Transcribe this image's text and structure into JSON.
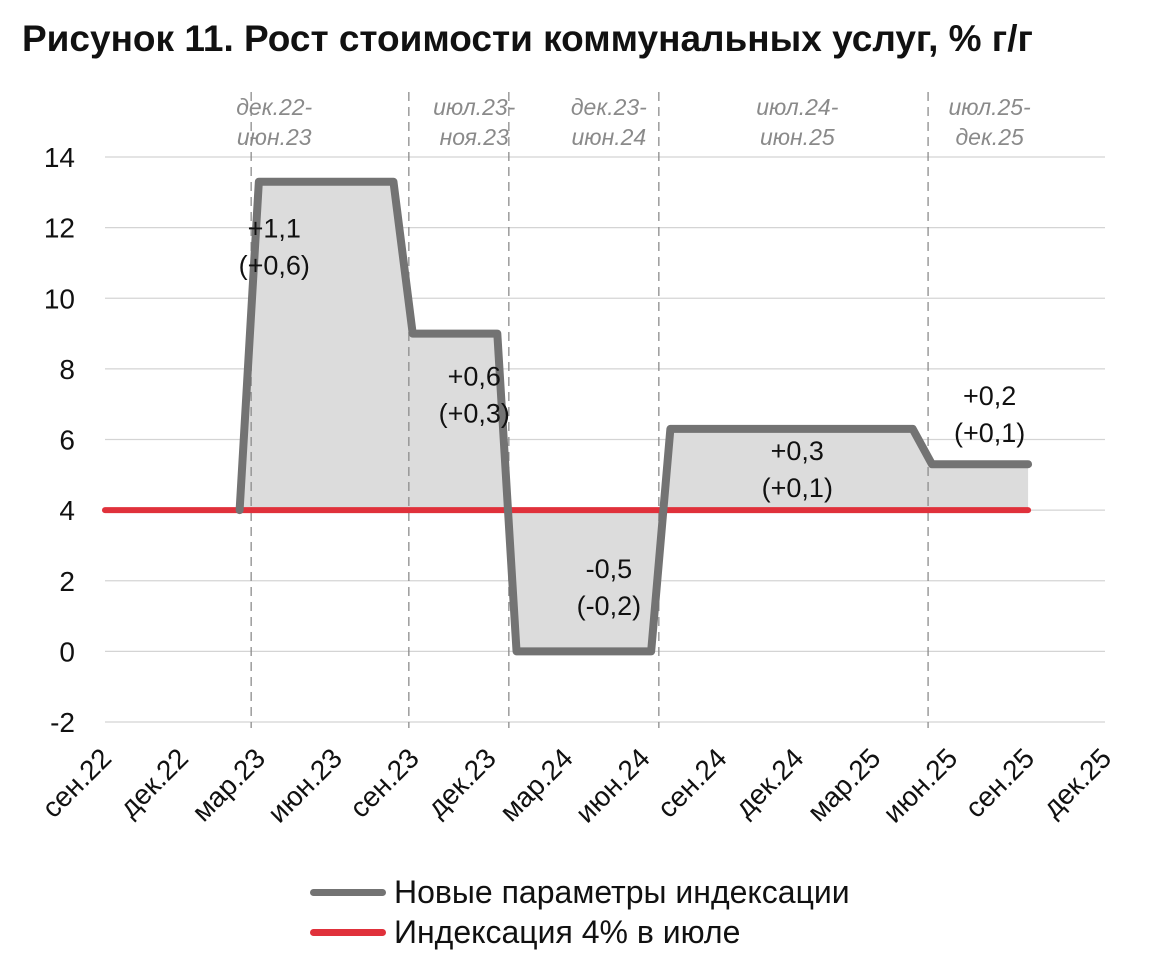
{
  "title": "Рисунок 11. Рост стоимости коммунальных услуг, % г/г",
  "chart_data": {
    "type": "area",
    "ylim": [
      -2,
      14
    ],
    "yticks": [
      -2,
      0,
      2,
      4,
      6,
      8,
      10,
      12,
      14
    ],
    "x_tick_labels": [
      "сен.22",
      "дек.22",
      "мар.23",
      "июн.23",
      "сен.23",
      "дек.23",
      "мар.24",
      "июн.24",
      "сен.24",
      "дек.24",
      "мар.25",
      "июн.25",
      "сен.25",
      "дек.25"
    ],
    "grid": true,
    "legend_position": "bottom",
    "series": [
      {
        "name": "Новые параметры индексации",
        "color": "#737373",
        "points": [
          {
            "x": 1.75,
            "y": 4.0
          },
          {
            "x": 2.0,
            "y": 13.3
          },
          {
            "x": 3.75,
            "y": 13.3
          },
          {
            "x": 4.0,
            "y": 9.0
          },
          {
            "x": 5.1,
            "y": 9.0
          },
          {
            "x": 5.35,
            "y": 0.0
          },
          {
            "x": 7.1,
            "y": 0.0
          },
          {
            "x": 7.35,
            "y": 6.3
          },
          {
            "x": 10.5,
            "y": 6.3
          },
          {
            "x": 10.75,
            "y": 5.3
          },
          {
            "x": 12.0,
            "y": 5.3
          }
        ]
      },
      {
        "name": "Индексация 4% в июле",
        "color": "#e0313b",
        "points": [
          {
            "x": 0.0,
            "y": 4.0
          },
          {
            "x": 12.0,
            "y": 4.0
          }
        ]
      }
    ],
    "area_fill_color": "#dcdcdc",
    "periods": [
      {
        "label": [
          "дек.22-",
          "июн.23"
        ],
        "x": 2.2
      },
      {
        "label": [
          "июл.23-",
          "ноя.23"
        ],
        "x": 4.8
      },
      {
        "label": [
          "дек.23-",
          "июн.24"
        ],
        "x": 6.55
      },
      {
        "label": [
          "июл.24-",
          "июн.25"
        ],
        "x": 9.0
      },
      {
        "label": [
          "июл.25-",
          "дек.25"
        ],
        "x": 11.5
      }
    ],
    "period_separators": [
      1.9,
      3.95,
      5.25,
      7.2,
      10.7
    ],
    "annotations": [
      {
        "lines": [
          "+1,1",
          "(+0,6)"
        ],
        "x": 2.2,
        "y": 11.5
      },
      {
        "lines": [
          "+0,6",
          "(+0,3)"
        ],
        "x": 4.8,
        "y": 7.3
      },
      {
        "lines": [
          "-0,5",
          "(-0,2)"
        ],
        "x": 6.55,
        "y": 1.85
      },
      {
        "lines": [
          "+0,3",
          "(+0,1)"
        ],
        "x": 9.0,
        "y": 5.2
      },
      {
        "lines": [
          "+0,2",
          "(+0,1)"
        ],
        "x": 11.5,
        "y": 6.75
      }
    ]
  }
}
